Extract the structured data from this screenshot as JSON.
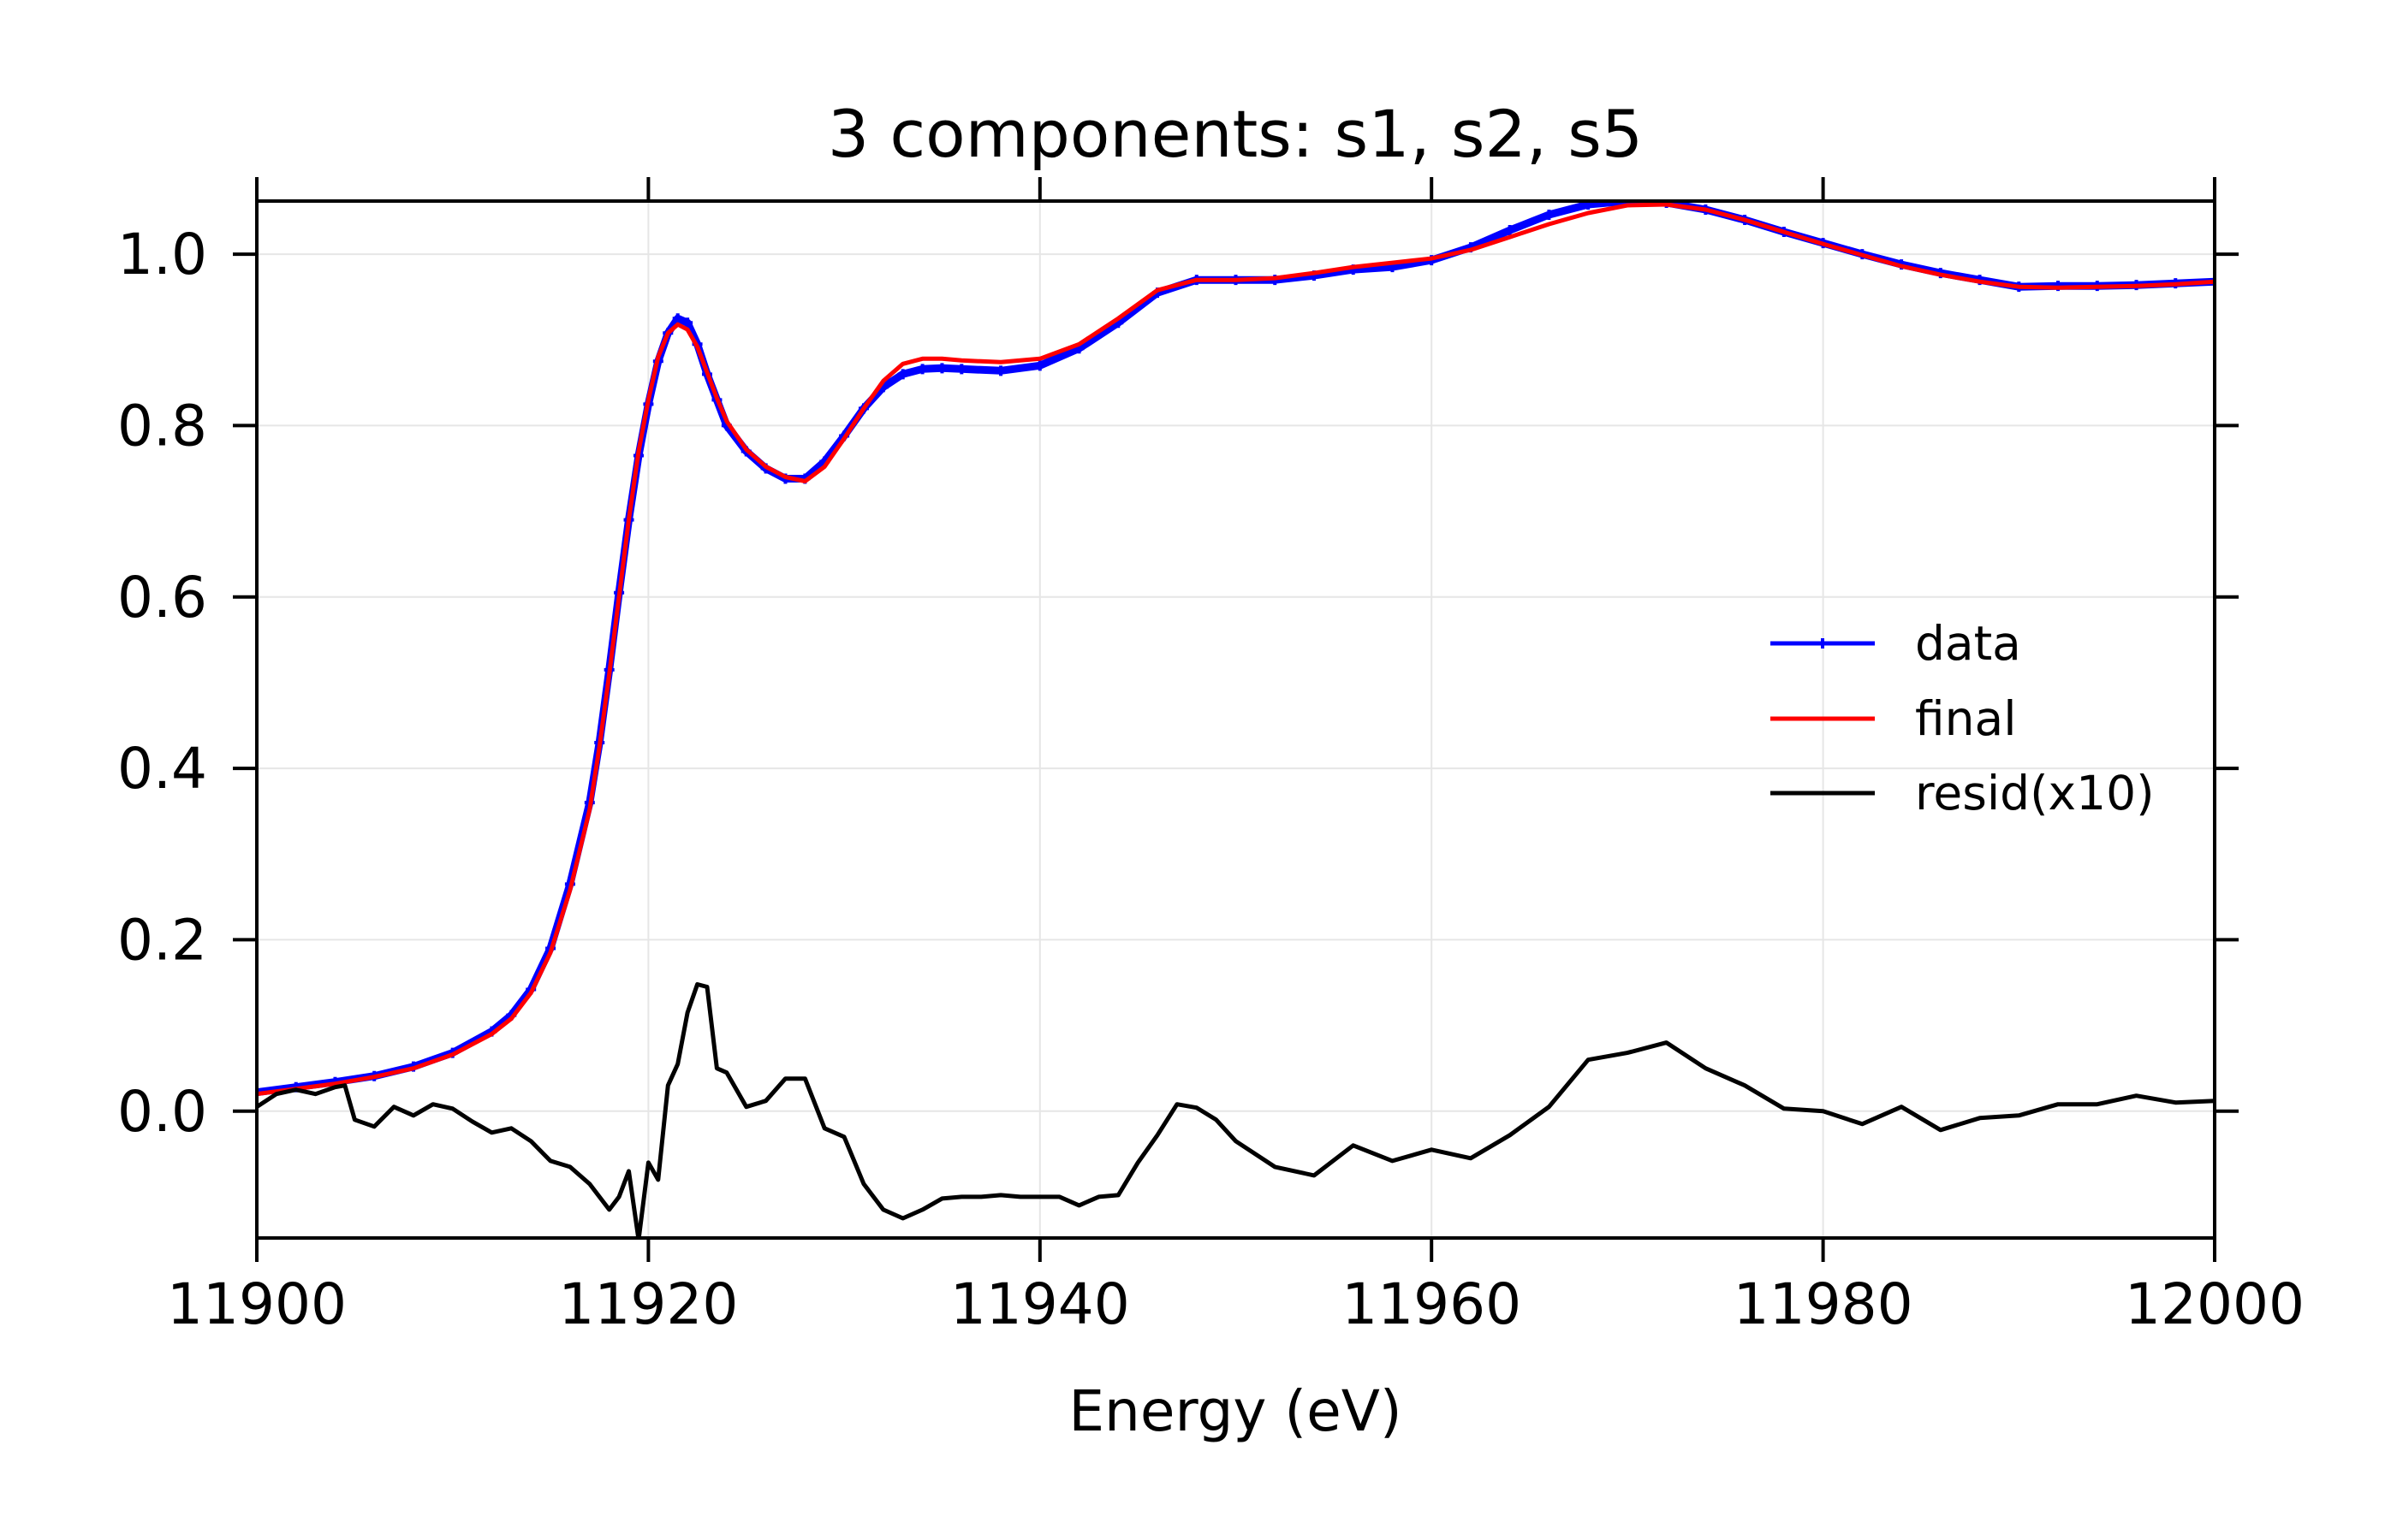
{
  "chart_data": {
    "type": "line",
    "title": "3 components:  s1, s2, s5",
    "xlabel": "Energy (eV)",
    "ylabel": "",
    "xlim": [
      11900,
      12000
    ],
    "ylim": [
      -0.148,
      1.062
    ],
    "grid": true,
    "xticks": [
      11900,
      11920,
      11940,
      11960,
      11980,
      12000
    ],
    "xtick_labels": [
      "11900",
      "11920",
      "11940",
      "11960",
      "11980",
      "12000"
    ],
    "yticks": [
      0.0,
      0.2,
      0.4,
      0.6,
      0.8,
      1.0
    ],
    "ytick_labels": [
      "0.0",
      "0.2",
      "0.4",
      "0.6",
      "0.8",
      "1.0"
    ],
    "legend_position": "center-right",
    "series": [
      {
        "name": "data",
        "color": "#0000ff",
        "marker": "plus",
        "x": [
          11900,
          11902,
          11904,
          11906,
          11908,
          11910,
          11912,
          11913,
          11914,
          11915,
          11916,
          11917,
          11917.5,
          11918,
          11918.5,
          11919,
          11919.5,
          11920,
          11920.5,
          11921,
          11921.5,
          11922,
          11922.5,
          11923,
          11923.5,
          11924,
          11925,
          11926,
          11927,
          11928,
          11929,
          11930,
          11931,
          11932,
          11933,
          11934,
          11935,
          11936,
          11938,
          11940,
          11942,
          11944,
          11946,
          11948,
          11950,
          11952,
          11954,
          11956,
          11958,
          11960,
          11962,
          11964,
          11966,
          11968,
          11970,
          11972,
          11974,
          11976,
          11978,
          11980,
          11982,
          11984,
          11986,
          11988,
          11990,
          11992,
          11994,
          11996,
          11998,
          12000
        ],
        "y": [
          0.022,
          0.028,
          0.034,
          0.041,
          0.052,
          0.068,
          0.093,
          0.112,
          0.142,
          0.19,
          0.265,
          0.36,
          0.43,
          0.515,
          0.605,
          0.69,
          0.765,
          0.825,
          0.875,
          0.908,
          0.925,
          0.92,
          0.895,
          0.86,
          0.83,
          0.8,
          0.77,
          0.75,
          0.738,
          0.738,
          0.758,
          0.788,
          0.82,
          0.845,
          0.86,
          0.866,
          0.867,
          0.866,
          0.864,
          0.87,
          0.89,
          0.92,
          0.955,
          0.97,
          0.97,
          0.97,
          0.975,
          0.982,
          0.985,
          0.993,
          1.008,
          1.028,
          1.046,
          1.058,
          1.062,
          1.06,
          1.052,
          1.04,
          1.026,
          1.013,
          1.0,
          0.988,
          0.978,
          0.97,
          0.962,
          0.963,
          0.963,
          0.964,
          0.966,
          0.968
        ]
      },
      {
        "name": "final",
        "color": "#ff0000",
        "marker": "none",
        "x": [
          11900,
          11902,
          11904,
          11906,
          11908,
          11910,
          11912,
          11913,
          11914,
          11915,
          11916,
          11917,
          11917.5,
          11918,
          11918.5,
          11919,
          11919.5,
          11920,
          11920.5,
          11921,
          11921.5,
          11922,
          11922.5,
          11923,
          11923.5,
          11924,
          11925,
          11926,
          11927,
          11928,
          11929,
          11930,
          11931,
          11932,
          11933,
          11934,
          11935,
          11936,
          11938,
          11940,
          11942,
          11944,
          11946,
          11948,
          11950,
          11952,
          11954,
          11956,
          11958,
          11960,
          11962,
          11964,
          11966,
          11968,
          11970,
          11972,
          11974,
          11976,
          11978,
          11980,
          11982,
          11984,
          11986,
          11988,
          11990,
          11992,
          11994,
          11996,
          11998,
          12000
        ],
        "y": [
          0.02,
          0.026,
          0.032,
          0.04,
          0.05,
          0.066,
          0.09,
          0.108,
          0.138,
          0.185,
          0.258,
          0.352,
          0.425,
          0.51,
          0.6,
          0.69,
          0.77,
          0.83,
          0.88,
          0.908,
          0.918,
          0.912,
          0.892,
          0.862,
          0.832,
          0.805,
          0.772,
          0.752,
          0.74,
          0.735,
          0.752,
          0.785,
          0.82,
          0.852,
          0.872,
          0.878,
          0.878,
          0.876,
          0.874,
          0.878,
          0.895,
          0.925,
          0.958,
          0.97,
          0.97,
          0.972,
          0.978,
          0.985,
          0.99,
          0.995,
          1.005,
          1.02,
          1.035,
          1.048,
          1.057,
          1.058,
          1.052,
          1.04,
          1.026,
          1.012,
          0.999,
          0.986,
          0.976,
          0.968,
          0.962,
          0.961,
          0.962,
          0.963,
          0.965,
          0.968
        ]
      },
      {
        "name": "resid(x10)",
        "color": "#000000",
        "marker": "none",
        "x": [
          11900,
          11901,
          11902,
          11903,
          11904,
          11904.5,
          11905,
          11906,
          11907,
          11908,
          11909,
          11910,
          11911,
          11912,
          11913,
          11914,
          11915,
          11916,
          11917,
          11918,
          11918.5,
          11919,
          11919.5,
          11920,
          11920.5,
          11921,
          11921.5,
          11922,
          11922.5,
          11923,
          11923.5,
          11924,
          11925,
          11926,
          11927,
          11928,
          11929,
          11930,
          11931,
          11932,
          11933,
          11934,
          11935,
          11936,
          11937,
          11938,
          11939,
          11940,
          11941,
          11942,
          11943,
          11944,
          11945,
          11946,
          11947,
          11948,
          11949,
          11950,
          11952,
          11954,
          11956,
          11958,
          11960,
          11962,
          11964,
          11966,
          11968,
          11970,
          11972,
          11974,
          11976,
          11978,
          11980,
          11982,
          11984,
          11986,
          11988,
          11990,
          11992,
          11994,
          11996,
          11998,
          12000
        ],
        "y": [
          0.005,
          0.02,
          0.025,
          0.02,
          0.028,
          0.03,
          -0.01,
          -0.018,
          0.005,
          -0.005,
          0.008,
          0.003,
          -0.012,
          -0.025,
          -0.02,
          -0.035,
          -0.058,
          -0.065,
          -0.085,
          -0.115,
          -0.1,
          -0.07,
          -0.15,
          -0.06,
          -0.08,
          0.03,
          0.055,
          0.115,
          0.148,
          0.145,
          0.05,
          0.045,
          0.005,
          0.012,
          0.038,
          0.038,
          -0.02,
          -0.03,
          -0.085,
          -0.115,
          -0.125,
          -0.115,
          -0.102,
          -0.1,
          -0.1,
          -0.098,
          -0.1,
          -0.1,
          -0.1,
          -0.11,
          -0.1,
          -0.098,
          -0.06,
          -0.028,
          0.008,
          0.004,
          -0.01,
          -0.035,
          -0.065,
          -0.075,
          -0.04,
          -0.058,
          -0.045,
          -0.055,
          -0.028,
          0.005,
          0.06,
          0.068,
          0.08,
          0.05,
          0.03,
          0.003,
          0.0,
          -0.015,
          0.005,
          -0.022,
          -0.008,
          -0.005,
          0.008,
          0.008,
          0.018,
          0.01,
          0.012
        ]
      }
    ]
  }
}
